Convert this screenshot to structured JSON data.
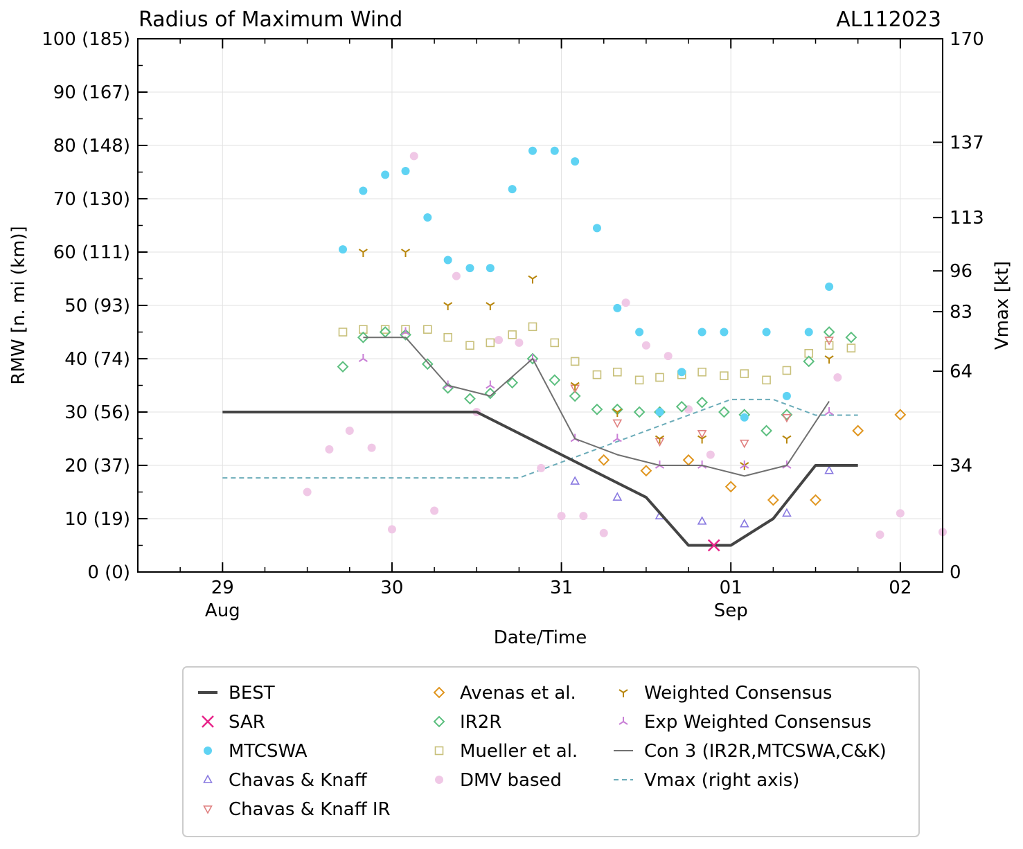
{
  "chart_data": {
    "type": "scatter",
    "title": "Radius of Maximum Wind",
    "storm_id": "AL112023",
    "xlabel": "Date/Time",
    "ylabel": "RMW [n. mi (km)]",
    "y2label": "Vmax [kt]",
    "xlim": [
      -0.5,
      4.25
    ],
    "ylim": [
      0,
      100
    ],
    "y2lim": [
      0,
      170
    ],
    "grid": true,
    "legend_position": "bottom",
    "x_units": "days since 29 Aug 00Z",
    "x_ticks": [
      {
        "x": 0,
        "label": "29",
        "sub": "Aug"
      },
      {
        "x": 1,
        "label": "30",
        "sub": ""
      },
      {
        "x": 2,
        "label": "31",
        "sub": ""
      },
      {
        "x": 3,
        "label": "01",
        "sub": "Sep"
      },
      {
        "x": 4,
        "label": "02",
        "sub": ""
      }
    ],
    "y_ticks": [
      {
        "v": 0,
        "label": "0 (0)"
      },
      {
        "v": 10,
        "label": "10 (19)"
      },
      {
        "v": 20,
        "label": "20 (37)"
      },
      {
        "v": 30,
        "label": "30 (56)"
      },
      {
        "v": 40,
        "label": "40 (74)"
      },
      {
        "v": 50,
        "label": "50 (93)"
      },
      {
        "v": 60,
        "label": "60 (111)"
      },
      {
        "v": 70,
        "label": "70 (130)"
      },
      {
        "v": 80,
        "label": "80 (148)"
      },
      {
        "v": 90,
        "label": "90 (167)"
      },
      {
        "v": 100,
        "label": "100 (185)"
      }
    ],
    "y2_ticks": [
      {
        "v": 0,
        "label": "0"
      },
      {
        "v": 34,
        "label": "34"
      },
      {
        "v": 64,
        "label": "64"
      },
      {
        "v": 83,
        "label": "83"
      },
      {
        "v": 96,
        "label": "96"
      },
      {
        "v": 113,
        "label": "113"
      },
      {
        "v": 137,
        "label": "137"
      },
      {
        "v": 170,
        "label": "170"
      }
    ],
    "series": [
      {
        "name": "BEST",
        "kind": "line",
        "color": "#444444",
        "width": 4,
        "points": [
          [
            0,
            30
          ],
          [
            1.5,
            30
          ],
          [
            2,
            22
          ],
          [
            2.5,
            14
          ],
          [
            2.75,
            5
          ],
          [
            3,
            5
          ],
          [
            3.25,
            10
          ],
          [
            3.5,
            20
          ],
          [
            3.75,
            20
          ]
        ]
      },
      {
        "name": "SAR",
        "kind": "marker",
        "marker": "x",
        "color": "#e8258a",
        "points": [
          [
            2.9,
            5
          ]
        ]
      },
      {
        "name": "MTCSWA",
        "kind": "marker",
        "marker": "circle",
        "color": "#5fd3f3",
        "points": [
          [
            0.71,
            60.5
          ],
          [
            0.83,
            71.5
          ],
          [
            0.96,
            74.5
          ],
          [
            1.08,
            75.2
          ],
          [
            1.21,
            66.5
          ],
          [
            1.33,
            58.5
          ],
          [
            1.46,
            57
          ],
          [
            1.58,
            57
          ],
          [
            1.71,
            71.8
          ],
          [
            1.83,
            79
          ],
          [
            1.96,
            79
          ],
          [
            2.08,
            77
          ],
          [
            2.21,
            64.5
          ],
          [
            2.33,
            49.5
          ],
          [
            2.46,
            45
          ],
          [
            2.58,
            30
          ],
          [
            2.71,
            37.5
          ],
          [
            2.83,
            45
          ],
          [
            2.96,
            45
          ],
          [
            3.08,
            29
          ],
          [
            3.21,
            45
          ],
          [
            3.33,
            33
          ],
          [
            3.46,
            45
          ],
          [
            3.58,
            53.5
          ]
        ]
      },
      {
        "name": "Chavas & Knaff",
        "kind": "marker",
        "marker": "tri-up",
        "color": "#8878e0",
        "points": [
          [
            2.08,
            17
          ],
          [
            2.33,
            14
          ],
          [
            2.58,
            10.5
          ],
          [
            2.83,
            9.5
          ],
          [
            3.08,
            9
          ],
          [
            3.33,
            11
          ],
          [
            3.58,
            19
          ]
        ]
      },
      {
        "name": "Chavas & Knaff IR",
        "kind": "marker",
        "marker": "tri-down",
        "color": "#e08080",
        "points": [
          [
            2.08,
            34.5
          ],
          [
            2.33,
            28
          ],
          [
            2.58,
            24.5
          ],
          [
            2.83,
            26
          ],
          [
            3.08,
            24.2
          ],
          [
            3.33,
            29
          ],
          [
            3.58,
            43.5
          ]
        ]
      },
      {
        "name": "Avenas et al.",
        "kind": "marker",
        "marker": "diamond",
        "color": "#e0951e",
        "points": [
          [
            2.25,
            21
          ],
          [
            2.5,
            19
          ],
          [
            2.75,
            21
          ],
          [
            3,
            16
          ],
          [
            3.25,
            13.5
          ],
          [
            3.5,
            13.5
          ],
          [
            3.75,
            26.5
          ],
          [
            4,
            29.5
          ]
        ]
      },
      {
        "name": "IR2R",
        "kind": "marker",
        "marker": "diamond",
        "color": "#5cbf7f",
        "points": [
          [
            0.71,
            38.5
          ],
          [
            0.83,
            44
          ],
          [
            0.96,
            45
          ],
          [
            1.08,
            44.5
          ],
          [
            1.21,
            39
          ],
          [
            1.33,
            34.5
          ],
          [
            1.46,
            32.5
          ],
          [
            1.58,
            33.5
          ],
          [
            1.71,
            35.5
          ],
          [
            1.83,
            40
          ],
          [
            1.96,
            36
          ],
          [
            2.08,
            33
          ],
          [
            2.21,
            30.5
          ],
          [
            2.33,
            30.5
          ],
          [
            2.46,
            30
          ],
          [
            2.58,
            30
          ],
          [
            2.71,
            31
          ],
          [
            2.83,
            31.8
          ],
          [
            2.96,
            30
          ],
          [
            3.08,
            29.5
          ],
          [
            3.21,
            26.5
          ],
          [
            3.33,
            29.5
          ],
          [
            3.46,
            39.5
          ],
          [
            3.58,
            45
          ],
          [
            3.71,
            44
          ]
        ]
      },
      {
        "name": "Mueller et al.",
        "kind": "marker",
        "marker": "square",
        "color": "#c8c07a",
        "points": [
          [
            0.71,
            45
          ],
          [
            0.83,
            45.5
          ],
          [
            0.96,
            45.5
          ],
          [
            1.08,
            45.5
          ],
          [
            1.21,
            45.5
          ],
          [
            1.33,
            44
          ],
          [
            1.46,
            42.5
          ],
          [
            1.58,
            43
          ],
          [
            1.71,
            44.5
          ],
          [
            1.83,
            46
          ],
          [
            1.96,
            43
          ],
          [
            2.08,
            39.5
          ],
          [
            2.21,
            37
          ],
          [
            2.33,
            37.5
          ],
          [
            2.46,
            36
          ],
          [
            2.58,
            36.5
          ],
          [
            2.71,
            37
          ],
          [
            2.83,
            37.5
          ],
          [
            2.96,
            36.8
          ],
          [
            3.08,
            37.2
          ],
          [
            3.21,
            36
          ],
          [
            3.33,
            37.8
          ],
          [
            3.46,
            41
          ],
          [
            3.58,
            42.5
          ],
          [
            3.71,
            42
          ]
        ]
      },
      {
        "name": "DMV based",
        "kind": "marker",
        "marker": "circle",
        "color": "#f0c8e6",
        "points": [
          [
            0.5,
            15
          ],
          [
            0.63,
            23
          ],
          [
            0.75,
            26.5
          ],
          [
            0.88,
            23.3
          ],
          [
            1,
            8
          ],
          [
            1.13,
            78
          ],
          [
            1.25,
            11.5
          ],
          [
            1.38,
            55.5
          ],
          [
            1.5,
            30
          ],
          [
            1.63,
            43.5
          ],
          [
            1.75,
            43
          ],
          [
            1.88,
            19.5
          ],
          [
            2,
            10.5
          ],
          [
            2.13,
            10.5
          ],
          [
            2.25,
            7.3
          ],
          [
            2.38,
            50.5
          ],
          [
            2.5,
            42.5
          ],
          [
            2.63,
            40.5
          ],
          [
            2.75,
            30.5
          ],
          [
            2.88,
            22
          ],
          [
            3.88,
            7
          ],
          [
            4,
            11
          ],
          [
            4.25,
            7.5
          ],
          [
            3.63,
            36.5
          ]
        ]
      },
      {
        "name": "Weighted Consensus",
        "kind": "marker",
        "marker": "tri-down-line",
        "color": "#b8860b",
        "points": [
          [
            0.83,
            60
          ],
          [
            1.08,
            60
          ],
          [
            1.33,
            50
          ],
          [
            1.58,
            50
          ],
          [
            1.83,
            55
          ],
          [
            2.08,
            35
          ],
          [
            2.33,
            30
          ],
          [
            2.58,
            25
          ],
          [
            2.83,
            25
          ],
          [
            3.08,
            20
          ],
          [
            3.33,
            25
          ],
          [
            3.58,
            40
          ]
        ]
      },
      {
        "name": "Exp Weighted Consensus",
        "kind": "marker",
        "marker": "tri-up-line",
        "color": "#c97fd6",
        "points": [
          [
            0.83,
            40
          ],
          [
            1.08,
            45
          ],
          [
            1.33,
            35
          ],
          [
            1.58,
            35
          ],
          [
            1.83,
            40
          ],
          [
            2.08,
            25
          ],
          [
            2.33,
            25
          ],
          [
            2.58,
            20
          ],
          [
            2.83,
            20
          ],
          [
            3.08,
            20
          ],
          [
            3.33,
            20
          ],
          [
            3.58,
            30
          ]
        ]
      },
      {
        "name": "Con 3 (IR2R,MTCSWA,C&K)",
        "kind": "line",
        "color": "#707070",
        "width": 2,
        "points": [
          [
            0.83,
            44
          ],
          [
            1.08,
            44
          ],
          [
            1.33,
            35
          ],
          [
            1.58,
            33
          ],
          [
            1.83,
            40
          ],
          [
            2.08,
            25
          ],
          [
            2.33,
            22
          ],
          [
            2.58,
            20
          ],
          [
            2.83,
            20
          ],
          [
            3.08,
            18
          ],
          [
            3.33,
            20
          ],
          [
            3.58,
            32
          ]
        ]
      },
      {
        "name": "Vmax (right axis)",
        "kind": "line",
        "dashed": true,
        "axis": "right",
        "color": "#6aabb8",
        "width": 2,
        "points": [
          [
            0,
            30
          ],
          [
            1.75,
            30
          ],
          [
            2,
            35
          ],
          [
            2.5,
            45
          ],
          [
            3,
            55
          ],
          [
            3.25,
            55
          ],
          [
            3.5,
            50
          ],
          [
            3.75,
            50
          ]
        ]
      }
    ],
    "legend": [
      [
        "BEST",
        "SAR",
        "MTCSWA",
        "Chavas & Knaff",
        "Chavas & Knaff IR"
      ],
      [
        "Avenas et al.",
        "IR2R",
        "Mueller et al.",
        "DMV based"
      ],
      [
        "Weighted Consensus",
        "Exp Weighted Consensus",
        "Con 3 (IR2R,MTCSWA,C&K)",
        "Vmax (right axis)"
      ]
    ]
  }
}
